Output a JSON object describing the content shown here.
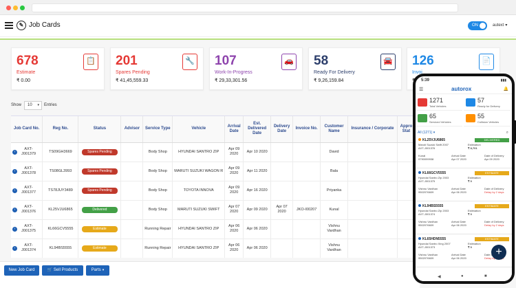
{
  "app": {
    "page_title": "Job Cards",
    "toggle_label": "ON",
    "user_name": "autext"
  },
  "colors": {
    "primary": "#1e63b8",
    "estimate": "#e53935",
    "spares": "#e53935",
    "wip": "#8e44ad",
    "ready": "#2c3e6b",
    "invoiced": "#1e88e5",
    "badge_spares": "#c0392b",
    "badge_delivered": "#43a047",
    "badge_estimate": "#e6a91a"
  },
  "stats": [
    {
      "count": "678",
      "label": "Estimate",
      "amount": "₹ 0.00",
      "color": "#e53935",
      "icon": "estimate-clipboard-icon"
    },
    {
      "count": "201",
      "label": "Spares Pending",
      "amount": "₹ 41,45,559.33",
      "color": "#e53935",
      "icon": "spare-part-icon"
    },
    {
      "count": "107",
      "label": "Work-In-Progress",
      "amount": "₹ 29,33,301.56",
      "color": "#8e44ad",
      "icon": "car-lift-icon"
    },
    {
      "count": "58",
      "label": "Ready For Delivery",
      "amount": "₹ 9,26,159.84",
      "color": "#2c3e6b",
      "icon": "car-check-icon"
    },
    {
      "count": "126",
      "label": "Invoi",
      "amount": "₹ 5",
      "color": "#1e88e5",
      "icon": "invoice-icon"
    }
  ],
  "table_controls": {
    "show_label": "Show",
    "entries_value": "10",
    "entries_label": "Entries"
  },
  "table": {
    "headers": [
      "Job Card No.",
      "Reg No.",
      "Status",
      "Advisor",
      "Service Type",
      "Vehicle",
      "Arrival Date",
      "Est. Delivered Date",
      "Delivery Date",
      "Invoice No.",
      "Customer Name",
      "Insurance / Corporate",
      "Appro Stat"
    ],
    "rows": [
      {
        "job": "AXT-J001379",
        "reg": "TS09GH3669",
        "status": "Spares Pending",
        "status_type": "spares",
        "advisor": "",
        "service": "Body Shop",
        "vehicle": "HYUNDAI SANTRO ZIP",
        "arrival": "Apr 09 2020",
        "est": "Apr 10 2020",
        "delivery": "",
        "invoice": "",
        "customer": "David",
        "insurance": "",
        "appro": ""
      },
      {
        "job": "AXT-J001378",
        "reg": "TS08GL3993",
        "status": "Spares Pending",
        "status_type": "spares",
        "advisor": "",
        "service": "Body Shop",
        "vehicle": "MARUTI SUZUKI WAGON R",
        "arrival": "Apr 09 2020",
        "est": "Apr 11 2020",
        "delivery": "",
        "invoice": "",
        "customer": "Bala",
        "insurance": "",
        "appro": ""
      },
      {
        "job": "AXT-J001377",
        "reg": "TS78JUY3489",
        "status": "Spares Pending",
        "status_type": "spares",
        "advisor": "",
        "service": "Body Shop",
        "vehicle": "TOYOTA INNOVA",
        "arrival": "Apr 09 2020",
        "est": "Apr 16 2020",
        "delivery": "",
        "invoice": "",
        "customer": "Priyanka",
        "insurance": "",
        "appro": ""
      },
      {
        "job": "AXT-J001376",
        "reg": "KL25VJU6865",
        "status": "Delivered",
        "status_type": "delivered",
        "advisor": "",
        "service": "Body Shop",
        "vehicle": "MARUTI SUZUKI SWIFT",
        "arrival": "Apr 07 2020",
        "est": "Apr 09 2020",
        "delivery": "Apr 07 2020",
        "invoice": "JKO-I00207",
        "customer": "Kunal",
        "insurance": "",
        "appro": ""
      },
      {
        "job": "AXT-J001375",
        "reg": "KL66GCV5555",
        "status": "Estimate",
        "status_type": "estimate",
        "advisor": "",
        "service": "Running Repair",
        "vehicle": "HYUNDAI SANTRO ZIP",
        "arrival": "Apr 06 2020",
        "est": "Apr 06 2020",
        "delivery": "",
        "invoice": "",
        "customer": "Vishnu Vardhan",
        "insurance": "",
        "appro": ""
      },
      {
        "job": "AXT-J001374",
        "reg": "KL94BS5555",
        "status": "Estimate",
        "status_type": "estimate",
        "advisor": "",
        "service": "Running Repair",
        "vehicle": "HYUNDAI SANTRO ZIP",
        "arrival": "Apr 06 2020",
        "est": "Apr 06 2020",
        "delivery": "",
        "invoice": "",
        "customer": "Vishnu Vardhan",
        "insurance": "",
        "appro": ""
      }
    ]
  },
  "actions": {
    "new_job_card": "New Job Card",
    "sell_products": "Sell Products",
    "parts": "Parts"
  },
  "phone": {
    "time": "5:39",
    "signal": "▮▮▮",
    "logo": "autorox",
    "stats": [
      {
        "count": "1271",
        "label": "Total Vehicles",
        "color": "#e53935"
      },
      {
        "count": "57",
        "label": "Ready for Delivery",
        "color": "#1e88e5"
      },
      {
        "count": "65",
        "label": "Serviced Vehicles",
        "color": "#43a047"
      },
      {
        "count": "55",
        "label": "Collision Vehicles",
        "color": "#ff8f00"
      }
    ],
    "filter_label": "All (1271)",
    "items": [
      {
        "reg": "KL25VJU6865",
        "badge": "DELIVERED",
        "badge_color": "#43a047",
        "dot_color": "#ff8f00",
        "car": "Maruti Suzuki Swift 2007",
        "id": "AXT-J001376",
        "est_label": "Estimation",
        "est_value": "₹ 8,701",
        "col1": "Kunal",
        "col2": "Arrival Date",
        "col3": "Date of Delivery",
        "val1": "9790099938",
        "val2": "Apr 07 2020",
        "val3": "Apr 09 2020",
        "delay": false
      },
      {
        "reg": "KL66GCV5555",
        "badge": "ESTIMATE",
        "badge_color": "#e6a91a",
        "dot_color": "#1e63b8",
        "car": "Hyundai Santro Zip 2003",
        "id": "AXT-J001375",
        "est_label": "Estimation",
        "est_value": "₹ 0",
        "col1": "Vishnu Vardhan",
        "col2": "Arrival Date",
        "col3": "Date of Delivery",
        "val1": "9502076609",
        "val2": "Apr 06 2020",
        "val3": "Delay by 2 days",
        "delay": true
      },
      {
        "reg": "KL94BS5555",
        "badge": "ESTIMATE",
        "badge_color": "#e6a91a",
        "dot_color": "#1e63b8",
        "car": "Hyundai Santro Zip 2003",
        "id": "AXT-J001374",
        "est_label": "Estimation",
        "est_value": "₹ 0",
        "col1": "Vishnu Vardhan",
        "col2": "Arrival Date",
        "col3": "Date of Delivery",
        "val1": "9502076609",
        "val2": "Apr 06 2020",
        "val3": "Delay by 2 days",
        "delay": true
      },
      {
        "reg": "KL65HDN5555",
        "badge": "ESTIMATE",
        "badge_color": "#e6a91a",
        "dot_color": "#1e63b8",
        "car": "Hyundai Santro Xing 2007",
        "id": "AXT-J001373",
        "est_label": "Estimation",
        "est_value": "₹ 0",
        "col1": "Vishnu Vardhan",
        "col2": "Arrival Date",
        "col3": "Date of Delivery",
        "val1": "9502076609",
        "val2": "Apr 06 2020",
        "val3": "Delay by 2 days",
        "delay": true
      }
    ],
    "fab": "+",
    "nav": [
      "◀",
      "●",
      "■"
    ]
  }
}
